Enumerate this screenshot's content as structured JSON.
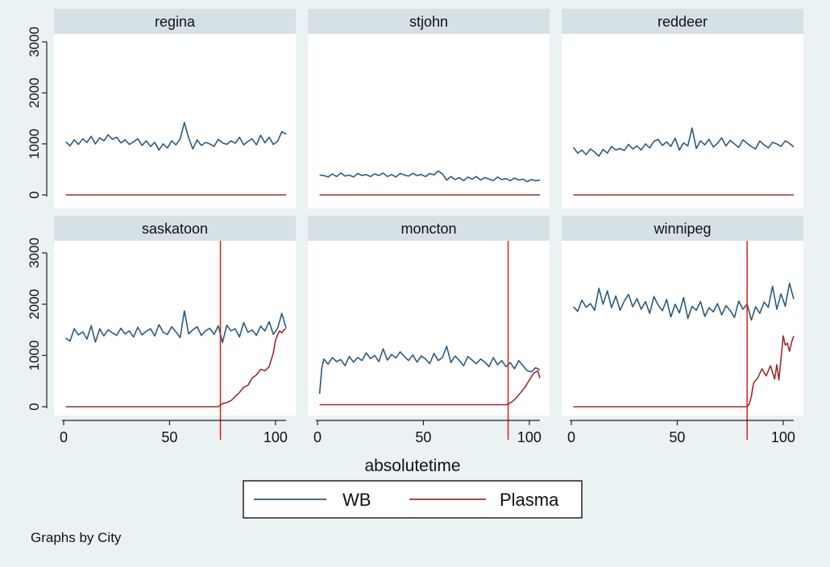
{
  "chart_data": {
    "type": "line",
    "title": "",
    "xlabel": "absolutetime",
    "ylabel": "",
    "xlim": [
      0,
      105
    ],
    "ylim": [
      0,
      3000
    ],
    "xticks": [
      "0",
      "50",
      "100"
    ],
    "yticks": [
      "0",
      "1000",
      "2000",
      "3000"
    ],
    "legend": [
      {
        "name": "WB",
        "color": "#2b5a7e"
      },
      {
        "name": "Plasma",
        "color": "#9e2b2b"
      }
    ],
    "vline_color": "#e11b1b",
    "panels": [
      {
        "city": "regina",
        "vline": null,
        "series": [
          {
            "name": "WB",
            "x": [
              1,
              3,
              5,
              7,
              9,
              11,
              13,
              15,
              17,
              19,
              21,
              23,
              25,
              27,
              29,
              31,
              33,
              35,
              37,
              39,
              41,
              43,
              45,
              47,
              49,
              51,
              53,
              55,
              57,
              59,
              61,
              63,
              65,
              67,
              69,
              71,
              73,
              75,
              77,
              79,
              81,
              83,
              85,
              87,
              89,
              91,
              93,
              95,
              97,
              99,
              101,
              103,
              105
            ],
            "values": [
              1040,
              960,
              1080,
              990,
              1100,
              1030,
              1150,
              1000,
              1120,
              1060,
              1180,
              1090,
              1130,
              1020,
              1080,
              990,
              1040,
              1100,
              970,
              1060,
              950,
              1030,
              880,
              1000,
              920,
              1060,
              980,
              1100,
              1420,
              1120,
              900,
              1080,
              970,
              1030,
              1000,
              950,
              1090,
              1020,
              990,
              1060,
              1010,
              1130,
              980,
              1050,
              1100,
              980,
              1170,
              1020,
              1130,
              990,
              1050,
              1240,
              1190
            ]
          },
          {
            "name": "Plasma",
            "x": [
              1,
              105
            ],
            "values": [
              0,
              0
            ]
          }
        ]
      },
      {
        "city": "stjohn",
        "vline": null,
        "series": [
          {
            "name": "WB",
            "x": [
              1,
              3,
              5,
              7,
              9,
              11,
              13,
              15,
              17,
              19,
              21,
              23,
              25,
              27,
              29,
              31,
              33,
              35,
              37,
              39,
              41,
              43,
              45,
              47,
              49,
              51,
              53,
              55,
              57,
              59,
              61,
              63,
              65,
              67,
              69,
              71,
              73,
              75,
              77,
              79,
              81,
              83,
              85,
              87,
              89,
              91,
              93,
              95,
              97,
              99,
              101,
              103,
              105
            ],
            "values": [
              390,
              380,
              350,
              410,
              360,
              430,
              370,
              390,
              350,
              420,
              380,
              400,
              360,
              410,
              380,
              430,
              360,
              400,
              350,
              420,
              390,
              370,
              420,
              380,
              400,
              360,
              420,
              390,
              470,
              410,
              290,
              360,
              300,
              340,
              280,
              350,
              310,
              360,
              290,
              340,
              310,
              280,
              350,
              300,
              320,
              280,
              330,
              290,
              310,
              260,
              300,
              280,
              290
            ]
          },
          {
            "name": "Plasma",
            "x": [
              1,
              105
            ],
            "values": [
              0,
              0
            ]
          }
        ]
      },
      {
        "city": "reddeer",
        "vline": null,
        "series": [
          {
            "name": "WB",
            "x": [
              1,
              3,
              5,
              7,
              9,
              11,
              13,
              15,
              17,
              19,
              21,
              23,
              25,
              27,
              29,
              31,
              33,
              35,
              37,
              39,
              41,
              43,
              45,
              47,
              49,
              51,
              53,
              55,
              57,
              59,
              61,
              63,
              65,
              67,
              69,
              71,
              73,
              75,
              77,
              79,
              81,
              83,
              85,
              87,
              89,
              91,
              93,
              95,
              97,
              99,
              101,
              103,
              105
            ],
            "values": [
              930,
              820,
              880,
              790,
              900,
              840,
              760,
              890,
              820,
              950,
              880,
              910,
              870,
              990,
              900,
              960,
              880,
              1000,
              920,
              1050,
              1090,
              970,
              1040,
              950,
              1110,
              880,
              1020,
              960,
              1310,
              910,
              1060,
              980,
              1090,
              940,
              1010,
              1120,
              960,
              1070,
              1000,
              930,
              1080,
              1010,
              950,
              900,
              1060,
              980,
              920,
              1030,
              1000,
              950,
              1060,
              1010,
              940
            ]
          },
          {
            "name": "Plasma",
            "x": [
              1,
              105
            ],
            "values": [
              0,
              0
            ]
          }
        ]
      },
      {
        "city": "saskatoon",
        "vline": 74,
        "series": [
          {
            "name": "WB",
            "x": [
              1,
              3,
              5,
              7,
              9,
              11,
              13,
              15,
              17,
              19,
              21,
              23,
              25,
              27,
              29,
              31,
              33,
              35,
              37,
              39,
              41,
              43,
              45,
              47,
              49,
              51,
              53,
              55,
              57,
              59,
              61,
              63,
              65,
              67,
              69,
              71,
              73,
              75,
              77,
              79,
              81,
              83,
              85,
              87,
              89,
              91,
              93,
              95,
              97,
              99,
              101,
              103,
              105
            ],
            "values": [
              1340,
              1280,
              1520,
              1400,
              1460,
              1320,
              1580,
              1260,
              1520,
              1380,
              1500,
              1440,
              1390,
              1530,
              1420,
              1480,
              1360,
              1550,
              1400,
              1470,
              1520,
              1380,
              1600,
              1450,
              1410,
              1560,
              1460,
              1350,
              1870,
              1420,
              1500,
              1560,
              1390,
              1480,
              1530,
              1410,
              1580,
              1250,
              1590,
              1480,
              1520,
              1360,
              1640,
              1450,
              1500,
              1390,
              1570,
              1480,
              1660,
              1410,
              1530,
              1820,
              1540
            ]
          },
          {
            "name": "Plasma",
            "x": [
              1,
              10,
              20,
              30,
              40,
              50,
              60,
              70,
              73,
              75,
              77,
              79,
              81,
              83,
              85,
              87,
              89,
              91,
              93,
              95,
              97,
              99,
              100,
              101,
              102,
              103,
              104,
              105
            ],
            "values": [
              0,
              0,
              0,
              0,
              0,
              0,
              0,
              0,
              0,
              60,
              80,
              120,
              200,
              280,
              380,
              420,
              560,
              620,
              730,
              700,
              780,
              1050,
              1300,
              1400,
              1480,
              1440,
              1500,
              1520
            ]
          }
        ]
      },
      {
        "city": "moncton",
        "vline": 90,
        "series": [
          {
            "name": "WB",
            "x": [
              1,
              2,
              3,
              5,
              7,
              9,
              11,
              13,
              15,
              17,
              19,
              21,
              23,
              25,
              27,
              29,
              31,
              33,
              35,
              37,
              39,
              41,
              43,
              45,
              47,
              49,
              51,
              53,
              55,
              57,
              59,
              61,
              63,
              65,
              67,
              69,
              71,
              73,
              75,
              77,
              79,
              81,
              83,
              85,
              87,
              89,
              91,
              93,
              95,
              97,
              99,
              101,
              103,
              105
            ],
            "values": [
              250,
              750,
              930,
              830,
              960,
              880,
              920,
              800,
              980,
              870,
              960,
              900,
              1050,
              940,
              1000,
              880,
              1130,
              910,
              1020,
              950,
              1070,
              980,
              900,
              1010,
              870,
              990,
              930,
              840,
              1040,
              900,
              960,
              1180,
              860,
              990,
              900,
              800,
              980,
              910,
              840,
              930,
              870,
              780,
              960,
              820,
              900,
              780,
              860,
              740,
              900,
              800,
              700,
              680,
              760,
              720
            ]
          },
          {
            "name": "Plasma",
            "x": [
              1,
              20,
              40,
              60,
              80,
              89,
              90,
              92,
              94,
              96,
              98,
              100,
              102,
              104,
              105
            ],
            "values": [
              40,
              40,
              40,
              40,
              40,
              40,
              50,
              100,
              180,
              280,
              380,
              520,
              650,
              700,
              560
            ]
          }
        ]
      },
      {
        "city": "winnipeg",
        "vline": 83,
        "series": [
          {
            "name": "WB",
            "x": [
              1,
              3,
              5,
              7,
              9,
              11,
              13,
              15,
              17,
              19,
              21,
              23,
              25,
              27,
              29,
              31,
              33,
              35,
              37,
              39,
              41,
              43,
              45,
              47,
              49,
              51,
              53,
              55,
              57,
              59,
              61,
              63,
              65,
              67,
              69,
              71,
              73,
              75,
              77,
              79,
              81,
              83,
              85,
              87,
              89,
              91,
              93,
              95,
              97,
              99,
              101,
              103,
              105
            ],
            "values": [
              1950,
              1860,
              2080,
              1940,
              2010,
              1880,
              2310,
              2000,
              2260,
              1930,
              2160,
              1880,
              2060,
              2190,
              1950,
              2110,
              1900,
              2050,
              1820,
              2150,
              1980,
              1870,
              2090,
              1750,
              2000,
              1830,
              2130,
              1720,
              1960,
              1880,
              2050,
              1760,
              1930,
              1850,
              2010,
              1790,
              1970,
              1880,
              1740,
              2060,
              1900,
              2000,
              1690,
              1950,
              1820,
              2040,
              1940,
              2350,
              1900,
              2200,
              1960,
              2410,
              2100
            ]
          },
          {
            "name": "Plasma",
            "x": [
              1,
              20,
              40,
              60,
              80,
              83,
              84,
              85,
              86,
              88,
              90,
              92,
              94,
              96,
              97,
              98,
              100,
              101,
              102,
              103,
              104,
              105
            ],
            "values": [
              0,
              0,
              0,
              0,
              0,
              0,
              50,
              200,
              460,
              560,
              740,
              600,
              800,
              540,
              820,
              520,
              1380,
              1200,
              1240,
              1080,
              1260,
              1380
            ]
          }
        ]
      }
    ]
  },
  "note": "Graphs by City"
}
